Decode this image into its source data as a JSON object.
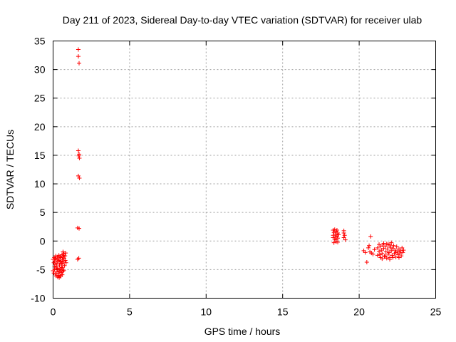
{
  "chart_data": {
    "type": "scatter",
    "title": "Day 211 of 2023, Sidereal Day-to-day VTEC variation (SDTVAR) for receiver ulab",
    "xlabel": "GPS time / hours",
    "ylabel": "SDTVAR / TECUs",
    "xlim": [
      0,
      25
    ],
    "ylim": [
      -10,
      35
    ],
    "xticks": [
      0,
      5,
      10,
      15,
      20,
      25
    ],
    "yticks": [
      -10,
      -5,
      0,
      5,
      10,
      15,
      20,
      25,
      30,
      35
    ],
    "xtick_labels": [
      "0",
      "5",
      "10",
      "15",
      "20",
      "25"
    ],
    "ytick_labels": [
      "-10",
      "-5",
      "0",
      "5",
      "10",
      "15",
      "20",
      "25",
      "30",
      "35"
    ],
    "grid": true,
    "marker": "+",
    "color": "#ff0000",
    "series": [
      {
        "name": "ulab",
        "points": [
          [
            0.0,
            -3.2
          ],
          [
            0.05,
            -3.8
          ],
          [
            0.08,
            -2.9
          ],
          [
            0.1,
            -3.5
          ],
          [
            0.12,
            -4.1
          ],
          [
            0.15,
            -3.0
          ],
          [
            0.18,
            -2.6
          ],
          [
            0.2,
            -3.3
          ],
          [
            0.22,
            -4.4
          ],
          [
            0.25,
            -3.9
          ],
          [
            0.28,
            -2.8
          ],
          [
            0.3,
            -3.6
          ],
          [
            0.32,
            -4.8
          ],
          [
            0.35,
            -3.1
          ],
          [
            0.38,
            -2.5
          ],
          [
            0.4,
            -3.4
          ],
          [
            0.42,
            -4.2
          ],
          [
            0.45,
            -5.0
          ],
          [
            0.48,
            -3.7
          ],
          [
            0.5,
            -2.9
          ],
          [
            0.52,
            -3.5
          ],
          [
            0.55,
            -4.6
          ],
          [
            0.58,
            -2.4
          ],
          [
            0.6,
            -3.2
          ],
          [
            0.62,
            -4.0
          ],
          [
            0.65,
            -2.8
          ],
          [
            0.68,
            -3.6
          ],
          [
            0.7,
            -2.2
          ],
          [
            0.72,
            -3.0
          ],
          [
            0.75,
            -4.3
          ],
          [
            0.78,
            -2.6
          ],
          [
            0.8,
            -3.4
          ],
          [
            0.82,
            -2.1
          ],
          [
            0.85,
            -3.8
          ],
          [
            0.65,
            -1.9
          ],
          [
            0.7,
            -2.5
          ],
          [
            0.6,
            -4.7
          ],
          [
            0.5,
            -5.2
          ],
          [
            0.55,
            -3.9
          ],
          [
            0.45,
            -2.7
          ],
          [
            0.0,
            -5.2
          ],
          [
            0.05,
            -5.6
          ],
          [
            0.1,
            -5.0
          ],
          [
            0.15,
            -5.8
          ],
          [
            0.2,
            -6.1
          ],
          [
            0.25,
            -5.4
          ],
          [
            0.3,
            -6.3
          ],
          [
            0.35,
            -5.7
          ],
          [
            0.4,
            -6.4
          ],
          [
            0.45,
            -6.0
          ],
          [
            0.5,
            -6.2
          ],
          [
            0.55,
            -5.5
          ],
          [
            0.6,
            -5.9
          ],
          [
            0.65,
            -5.3
          ],
          [
            0.7,
            -5.1
          ],
          [
            0.3,
            -4.9
          ],
          [
            0.4,
            -5.3
          ],
          [
            0.2,
            -4.7
          ],
          [
            0.1,
            -4.5
          ],
          [
            0.35,
            -6.0
          ],
          [
            1.65,
            33.5
          ],
          [
            1.65,
            32.3
          ],
          [
            1.7,
            31.1
          ],
          [
            1.65,
            15.8
          ],
          [
            1.7,
            15.2
          ],
          [
            1.68,
            14.9
          ],
          [
            1.72,
            14.5
          ],
          [
            1.65,
            11.4
          ],
          [
            1.72,
            11.0
          ],
          [
            1.6,
            2.3
          ],
          [
            1.7,
            2.2
          ],
          [
            1.6,
            -3.2
          ],
          [
            1.68,
            -3.0
          ],
          [
            18.3,
            1.9
          ],
          [
            18.35,
            1.5
          ],
          [
            18.4,
            2.0
          ],
          [
            18.45,
            1.2
          ],
          [
            18.5,
            1.7
          ],
          [
            18.55,
            0.9
          ],
          [
            18.6,
            1.4
          ],
          [
            18.3,
            0.6
          ],
          [
            18.4,
            0.3
          ],
          [
            18.5,
            -0.1
          ],
          [
            18.6,
            0.5
          ],
          [
            18.35,
            -0.3
          ],
          [
            18.45,
            0.8
          ],
          [
            18.55,
            1.9
          ],
          [
            18.65,
            1.1
          ],
          [
            18.3,
            1.0
          ],
          [
            18.6,
            -0.2
          ],
          [
            18.5,
            0.2
          ],
          [
            19.0,
            1.4
          ],
          [
            19.05,
            1.0
          ],
          [
            19.0,
            0.6
          ],
          [
            19.1,
            0.2
          ],
          [
            19.0,
            1.8
          ],
          [
            20.3,
            -1.7
          ],
          [
            20.4,
            -2.0
          ],
          [
            20.5,
            -3.7
          ],
          [
            20.6,
            -1.2
          ],
          [
            20.65,
            -0.8
          ],
          [
            20.75,
            0.8
          ],
          [
            20.8,
            -2.1
          ],
          [
            20.9,
            -2.3
          ],
          [
            21.0,
            -1.5
          ],
          [
            20.7,
            -1.9
          ],
          [
            21.2,
            -1.2
          ],
          [
            21.3,
            -1.8
          ],
          [
            21.35,
            -2.4
          ],
          [
            21.4,
            -0.9
          ],
          [
            21.45,
            -1.6
          ],
          [
            21.5,
            -2.2
          ],
          [
            21.55,
            -0.7
          ],
          [
            21.6,
            -1.3
          ],
          [
            21.65,
            -2.7
          ],
          [
            21.7,
            -1.0
          ],
          [
            21.75,
            -1.9
          ],
          [
            21.8,
            -3.0
          ],
          [
            21.85,
            -1.4
          ],
          [
            21.9,
            -0.6
          ],
          [
            21.95,
            -2.0
          ],
          [
            22.0,
            -2.9
          ],
          [
            22.05,
            -1.1
          ],
          [
            22.1,
            -1.7
          ],
          [
            22.15,
            -2.5
          ],
          [
            22.2,
            -1.3
          ],
          [
            22.25,
            -0.8
          ],
          [
            22.3,
            -2.2
          ],
          [
            22.35,
            -1.6
          ],
          [
            22.4,
            -2.8
          ],
          [
            22.45,
            -1.0
          ],
          [
            22.5,
            -1.9
          ],
          [
            22.55,
            -2.4
          ],
          [
            22.6,
            -1.4
          ],
          [
            22.65,
            -2.1
          ],
          [
            22.7,
            -1.7
          ],
          [
            22.75,
            -2.6
          ],
          [
            22.8,
            -1.2
          ],
          [
            22.85,
            -2.0
          ],
          [
            22.9,
            -1.6
          ],
          [
            21.5,
            -3.1
          ],
          [
            21.7,
            -2.6
          ],
          [
            22.0,
            -3.2
          ],
          [
            22.2,
            -2.9
          ],
          [
            21.9,
            -2.3
          ],
          [
            22.4,
            -2.0
          ],
          [
            21.6,
            -0.4
          ],
          [
            21.8,
            -0.5
          ],
          [
            22.0,
            -0.7
          ],
          [
            21.3,
            -0.6
          ],
          [
            22.6,
            -2.9
          ],
          [
            21.4,
            -2.9
          ],
          [
            22.1,
            -0.3
          ],
          [
            21.2,
            -2.5
          ]
        ]
      }
    ]
  }
}
